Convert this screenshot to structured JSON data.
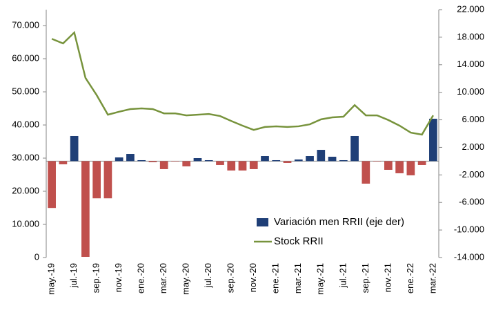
{
  "chart_data": {
    "type": "bar-line",
    "categories": [
      "may.-19",
      null,
      "jul.-19",
      null,
      "sep.-19",
      null,
      "nov.-19",
      null,
      "ene.-20",
      null,
      "mar.-20",
      null,
      "may.-20",
      null,
      "jul.-20",
      null,
      "sep.-20",
      null,
      "nov.-20",
      null,
      "ene.-21",
      null,
      "mar.-21",
      null,
      "may.-21",
      null,
      "jul.-21",
      null,
      "sep.-21",
      null,
      "nov.-21",
      null,
      "ene.-22",
      null,
      "mar.-22"
    ],
    "series": [
      {
        "name": "Variación men RRII (eje der)",
        "type": "bar",
        "axis": "y2",
        "color": "#1f3f77",
        "negative_color": "#c0504d",
        "values": [
          -6800,
          -460,
          3650,
          -13900,
          -5400,
          -5400,
          540,
          1040,
          140,
          -160,
          -1160,
          -60,
          -760,
          440,
          140,
          -560,
          -1360,
          -1360,
          -1160,
          740,
          140,
          -260,
          240,
          740,
          1640,
          640,
          140,
          3650,
          -3270,
          -60,
          -1260,
          -1760,
          -2060,
          -560,
          6160
        ]
      },
      {
        "name": "Stock RRII",
        "type": "line",
        "axis": "y",
        "color": "#77933c",
        "values": [
          66000,
          64600,
          67900,
          54200,
          49000,
          43100,
          44000,
          44800,
          45000,
          44800,
          43500,
          43500,
          42900,
          43100,
          43300,
          42700,
          41200,
          39800,
          38500,
          39400,
          39600,
          39400,
          39600,
          40200,
          41700,
          42300,
          42500,
          46000,
          42900,
          42900,
          41500,
          39800,
          37700,
          37100,
          42900
        ]
      }
    ],
    "ylim": [
      0,
      74800
    ],
    "yticks": [
      {
        "value": 0,
        "label": "0"
      },
      {
        "value": 10000,
        "label": "10.000"
      },
      {
        "value": 20000,
        "label": "20.000"
      },
      {
        "value": 30000,
        "label": "30.000"
      },
      {
        "value": 40000,
        "label": "40.000"
      },
      {
        "value": 50000,
        "label": "50.000"
      },
      {
        "value": 60000,
        "label": "60.000"
      },
      {
        "value": 70000,
        "label": "70.000"
      }
    ],
    "y2lim": [
      -14000,
      22000
    ],
    "y2ticks": [
      {
        "value": -14000,
        "label": "-14.000"
      },
      {
        "value": -10000,
        "label": "-10.000"
      },
      {
        "value": -6000,
        "label": "-6.000"
      },
      {
        "value": -2000,
        "label": "-2.000"
      },
      {
        "value": 2000,
        "label": "2.000"
      },
      {
        "value": 6000,
        "label": "6.000"
      },
      {
        "value": 10000,
        "label": "10.000"
      },
      {
        "value": 14000,
        "label": "14.000"
      },
      {
        "value": 18000,
        "label": "18.000"
      },
      {
        "value": 22000,
        "label": "22.000"
      }
    ],
    "grid": false,
    "legend": "lower-right"
  }
}
